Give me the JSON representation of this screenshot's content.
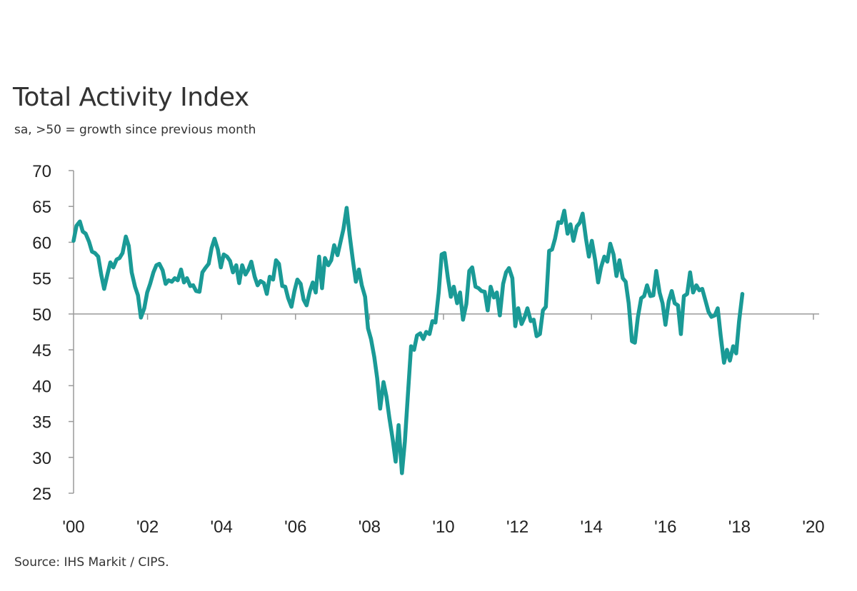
{
  "chart_data": {
    "type": "line",
    "title": "Total Activity Index",
    "subtitle": "sa, >50 = growth since previous month",
    "source": "Source: IHS Markit / CIPS.",
    "ylim": [
      25,
      70
    ],
    "yticks": [
      "70",
      "65",
      "60",
      "55",
      "50",
      "45",
      "40",
      "35",
      "30",
      "25"
    ],
    "xlim": [
      2000.0,
      2020.1
    ],
    "xticks": [
      "'00",
      "'02",
      "'04",
      "'06",
      "'08",
      "'10",
      "'12",
      "'14",
      "'16",
      "'18",
      "'20"
    ],
    "reference_line": 50,
    "line_color": "#1a9a96",
    "series": [
      {
        "values": [
          [
            2000.0,
            60.2
          ],
          [
            2000.08,
            62.3
          ],
          [
            2000.17,
            62.9
          ],
          [
            2000.25,
            61.5
          ],
          [
            2000.33,
            61.2
          ],
          [
            2000.42,
            60.1
          ],
          [
            2000.5,
            58.7
          ],
          [
            2000.58,
            58.5
          ],
          [
            2000.67,
            58.0
          ],
          [
            2000.75,
            55.5
          ],
          [
            2000.83,
            53.5
          ],
          [
            2000.92,
            55.5
          ],
          [
            2001.0,
            57.2
          ],
          [
            2001.08,
            56.5
          ],
          [
            2001.17,
            57.6
          ],
          [
            2001.25,
            57.8
          ],
          [
            2001.33,
            58.5
          ],
          [
            2001.42,
            60.8
          ],
          [
            2001.5,
            59.5
          ],
          [
            2001.58,
            55.8
          ],
          [
            2001.67,
            53.8
          ],
          [
            2001.75,
            52.6
          ],
          [
            2001.83,
            49.5
          ],
          [
            2001.92,
            50.8
          ],
          [
            2002.0,
            53.0
          ],
          [
            2002.08,
            54.2
          ],
          [
            2002.17,
            55.8
          ],
          [
            2002.25,
            56.8
          ],
          [
            2002.33,
            57.0
          ],
          [
            2002.42,
            56.1
          ],
          [
            2002.5,
            54.2
          ],
          [
            2002.58,
            54.7
          ],
          [
            2002.67,
            54.5
          ],
          [
            2002.75,
            55.0
          ],
          [
            2002.83,
            54.7
          ],
          [
            2002.92,
            56.2
          ],
          [
            2003.0,
            54.4
          ],
          [
            2003.08,
            55.0
          ],
          [
            2003.17,
            53.9
          ],
          [
            2003.25,
            54.0
          ],
          [
            2003.33,
            53.2
          ],
          [
            2003.42,
            53.1
          ],
          [
            2003.5,
            55.8
          ],
          [
            2003.58,
            56.4
          ],
          [
            2003.67,
            57.0
          ],
          [
            2003.75,
            59.2
          ],
          [
            2003.83,
            60.5
          ],
          [
            2003.92,
            59.0
          ],
          [
            2004.0,
            56.5
          ],
          [
            2004.08,
            58.3
          ],
          [
            2004.17,
            58.0
          ],
          [
            2004.25,
            57.4
          ],
          [
            2004.33,
            55.8
          ],
          [
            2004.42,
            56.8
          ],
          [
            2004.5,
            54.3
          ],
          [
            2004.58,
            56.8
          ],
          [
            2004.67,
            55.5
          ],
          [
            2004.75,
            56.2
          ],
          [
            2004.83,
            57.3
          ],
          [
            2004.92,
            55.2
          ],
          [
            2005.0,
            54.0
          ],
          [
            2005.08,
            54.6
          ],
          [
            2005.17,
            54.3
          ],
          [
            2005.25,
            52.8
          ],
          [
            2005.33,
            55.2
          ],
          [
            2005.42,
            54.8
          ],
          [
            2005.5,
            57.5
          ],
          [
            2005.58,
            57.0
          ],
          [
            2005.67,
            53.9
          ],
          [
            2005.75,
            53.8
          ],
          [
            2005.83,
            52.2
          ],
          [
            2005.92,
            51.0
          ],
          [
            2006.0,
            53.2
          ],
          [
            2006.08,
            54.8
          ],
          [
            2006.17,
            54.2
          ],
          [
            2006.25,
            52.0
          ],
          [
            2006.33,
            51.2
          ],
          [
            2006.42,
            53.2
          ],
          [
            2006.5,
            54.4
          ],
          [
            2006.58,
            53.0
          ],
          [
            2006.67,
            58.0
          ],
          [
            2006.75,
            53.6
          ],
          [
            2006.83,
            57.8
          ],
          [
            2006.92,
            56.8
          ],
          [
            2007.0,
            57.5
          ],
          [
            2007.08,
            59.6
          ],
          [
            2007.17,
            58.2
          ],
          [
            2007.25,
            60.0
          ],
          [
            2007.33,
            61.8
          ],
          [
            2007.42,
            64.8
          ],
          [
            2007.5,
            61.0
          ],
          [
            2007.58,
            57.8
          ],
          [
            2007.67,
            54.5
          ],
          [
            2007.75,
            56.2
          ],
          [
            2007.83,
            54.0
          ],
          [
            2007.92,
            52.4
          ],
          [
            2008.0,
            48.0
          ],
          [
            2008.08,
            46.5
          ],
          [
            2008.17,
            44.0
          ],
          [
            2008.25,
            41.0
          ],
          [
            2008.33,
            36.8
          ],
          [
            2008.42,
            40.5
          ],
          [
            2008.5,
            38.5
          ],
          [
            2008.58,
            35.5
          ],
          [
            2008.67,
            32.5
          ],
          [
            2008.75,
            29.4
          ],
          [
            2008.83,
            34.5
          ],
          [
            2008.92,
            27.8
          ],
          [
            2009.0,
            32.2
          ],
          [
            2009.08,
            38.5
          ],
          [
            2009.17,
            45.5
          ],
          [
            2009.25,
            45.0
          ],
          [
            2009.33,
            47.0
          ],
          [
            2009.42,
            47.3
          ],
          [
            2009.5,
            46.5
          ],
          [
            2009.58,
            47.5
          ],
          [
            2009.67,
            47.2
          ],
          [
            2009.75,
            49.0
          ],
          [
            2009.83,
            48.8
          ],
          [
            2009.92,
            53.0
          ],
          [
            2010.0,
            58.3
          ],
          [
            2010.08,
            58.5
          ],
          [
            2010.17,
            55.0
          ],
          [
            2010.25,
            52.4
          ],
          [
            2010.33,
            53.8
          ],
          [
            2010.42,
            51.5
          ],
          [
            2010.5,
            53.0
          ],
          [
            2010.58,
            49.2
          ],
          [
            2010.67,
            51.4
          ],
          [
            2010.75,
            56.0
          ],
          [
            2010.83,
            56.5
          ],
          [
            2010.92,
            53.8
          ],
          [
            2011.0,
            53.6
          ],
          [
            2011.08,
            53.2
          ],
          [
            2011.17,
            53.1
          ],
          [
            2011.25,
            50.5
          ],
          [
            2011.33,
            53.8
          ],
          [
            2011.42,
            52.3
          ],
          [
            2011.5,
            53.0
          ],
          [
            2011.58,
            49.8
          ],
          [
            2011.67,
            54.2
          ],
          [
            2011.75,
            55.8
          ],
          [
            2011.83,
            56.4
          ],
          [
            2011.92,
            55.0
          ],
          [
            2012.0,
            48.3
          ],
          [
            2012.08,
            50.8
          ],
          [
            2012.17,
            48.6
          ],
          [
            2012.25,
            49.5
          ],
          [
            2012.33,
            50.8
          ],
          [
            2012.42,
            49.0
          ],
          [
            2012.5,
            49.2
          ],
          [
            2012.58,
            46.9
          ],
          [
            2012.67,
            47.2
          ],
          [
            2012.75,
            50.5
          ],
          [
            2012.83,
            51.0
          ],
          [
            2012.92,
            58.8
          ],
          [
            2013.0,
            59.0
          ],
          [
            2013.08,
            60.5
          ],
          [
            2013.17,
            62.8
          ],
          [
            2013.25,
            62.7
          ],
          [
            2013.33,
            64.4
          ],
          [
            2013.42,
            61.2
          ],
          [
            2013.5,
            62.5
          ],
          [
            2013.58,
            60.2
          ],
          [
            2013.67,
            62.2
          ],
          [
            2013.75,
            62.7
          ],
          [
            2013.83,
            64.0
          ],
          [
            2013.92,
            60.5
          ],
          [
            2014.0,
            58.0
          ],
          [
            2014.08,
            60.2
          ],
          [
            2014.17,
            57.5
          ],
          [
            2014.25,
            54.4
          ],
          [
            2014.33,
            56.5
          ],
          [
            2014.42,
            58.0
          ],
          [
            2014.5,
            57.3
          ],
          [
            2014.58,
            59.8
          ],
          [
            2014.67,
            58.3
          ],
          [
            2014.75,
            55.3
          ],
          [
            2014.83,
            57.5
          ],
          [
            2014.92,
            55.0
          ],
          [
            2015.0,
            54.5
          ],
          [
            2015.08,
            51.5
          ],
          [
            2015.17,
            46.2
          ],
          [
            2015.25,
            46.0
          ],
          [
            2015.33,
            49.5
          ],
          [
            2015.42,
            52.2
          ],
          [
            2015.5,
            52.5
          ],
          [
            2015.58,
            54.0
          ],
          [
            2015.67,
            52.5
          ],
          [
            2015.75,
            52.6
          ],
          [
            2015.83,
            56.0
          ],
          [
            2015.92,
            53.0
          ],
          [
            2016.0,
            51.5
          ],
          [
            2016.08,
            48.5
          ],
          [
            2016.17,
            51.8
          ],
          [
            2016.25,
            53.2
          ],
          [
            2016.33,
            51.5
          ],
          [
            2016.42,
            51.2
          ],
          [
            2016.5,
            47.2
          ],
          [
            2016.58,
            52.5
          ],
          [
            2016.67,
            52.8
          ],
          [
            2016.75,
            55.8
          ],
          [
            2016.83,
            53.0
          ],
          [
            2016.92,
            54.0
          ],
          [
            2017.0,
            53.3
          ],
          [
            2017.08,
            53.5
          ],
          [
            2017.17,
            51.8
          ],
          [
            2017.25,
            50.3
          ],
          [
            2017.33,
            49.6
          ],
          [
            2017.42,
            49.8
          ],
          [
            2017.5,
            50.8
          ],
          [
            2017.58,
            47.0
          ],
          [
            2017.67,
            43.2
          ],
          [
            2017.75,
            45.0
          ],
          [
            2017.83,
            43.5
          ],
          [
            2017.92,
            45.5
          ],
          [
            2018.0,
            44.5
          ],
          [
            2018.08,
            49.0
          ],
          [
            2018.17,
            52.8
          ]
        ]
      }
    ]
  }
}
